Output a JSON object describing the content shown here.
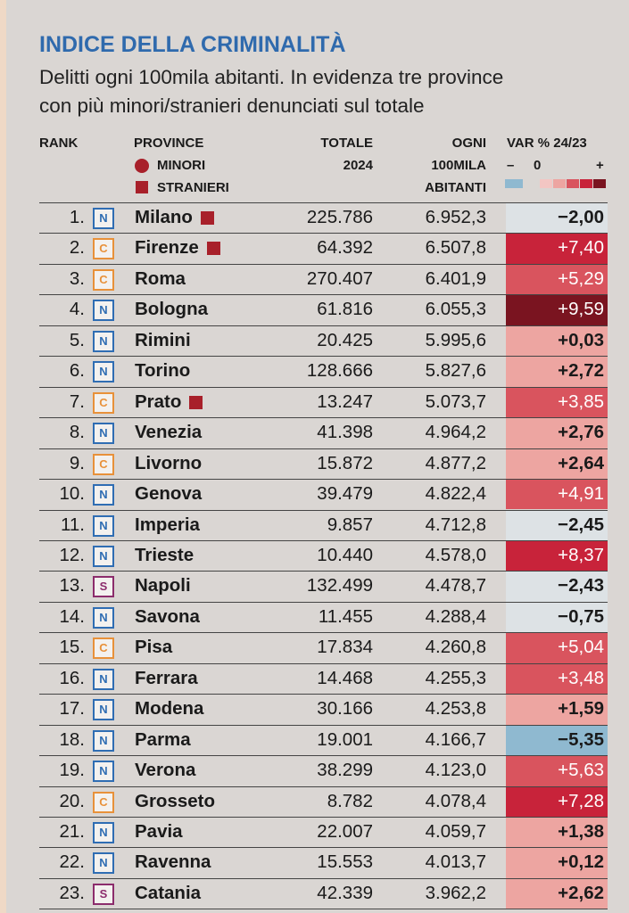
{
  "header": {
    "title": "INDICE DELLA CRIMINALITÀ",
    "subtitle": [
      "Delitti ogni 100mila abitanti. In evidenza tre province",
      "con più minori/stranieri denunciati sul totale"
    ]
  },
  "columns": {
    "rank": "RANK",
    "province": "PROVINCE",
    "minori": "MINORI",
    "stranieri": "STRANIERI",
    "totale": [
      "TOTALE",
      "2024"
    ],
    "ogni": [
      "OGNI",
      "100MILA",
      "ABITANTI"
    ],
    "var": "VAR % 24/23",
    "minus": "–",
    "zero": "0",
    "plus": "+"
  },
  "area_colors": {
    "N": "#2f6db3",
    "C": "#e8913a",
    "S": "#8c2c6c"
  },
  "marker_color": "#a8202a",
  "scale_colors": {
    "blue": "#8fb9d0",
    "gray": "#dde2e5",
    "pale": "#f3c6c3",
    "light": "#eda5a1",
    "medium": "#d9545e",
    "red": "#c8233a",
    "dark": "#7a1420"
  },
  "rows": [
    {
      "rank": "1.",
      "area": "N",
      "name": "Milano",
      "stranieri": true,
      "totale": "225.786",
      "ogni": "6.952,3",
      "var": "−2,00"
    },
    {
      "rank": "2.",
      "area": "C",
      "name": "Firenze",
      "stranieri": true,
      "totale": "64.392",
      "ogni": "6.507,8",
      "var": "+7,40"
    },
    {
      "rank": "3.",
      "area": "C",
      "name": "Roma",
      "totale": "270.407",
      "ogni": "6.401,9",
      "var": "+5,29"
    },
    {
      "rank": "4.",
      "area": "N",
      "name": "Bologna",
      "totale": "61.816",
      "ogni": "6.055,3",
      "var": "+9,59"
    },
    {
      "rank": "5.",
      "area": "N",
      "name": "Rimini",
      "totale": "20.425",
      "ogni": "5.995,6",
      "var": "+0,03"
    },
    {
      "rank": "6.",
      "area": "N",
      "name": "Torino",
      "totale": "128.666",
      "ogni": "5.827,6",
      "var": "+2,72"
    },
    {
      "rank": "7.",
      "area": "C",
      "name": "Prato",
      "stranieri": true,
      "totale": "13.247",
      "ogni": "5.073,7",
      "var": "+3,85"
    },
    {
      "rank": "8.",
      "area": "N",
      "name": "Venezia",
      "totale": "41.398",
      "ogni": "4.964,2",
      "var": "+2,76"
    },
    {
      "rank": "9.",
      "area": "C",
      "name": "Livorno",
      "totale": "15.872",
      "ogni": "4.877,2",
      "var": "+2,64"
    },
    {
      "rank": "10.",
      "area": "N",
      "name": "Genova",
      "totale": "39.479",
      "ogni": "4.822,4",
      "var": "+4,91"
    },
    {
      "rank": "11.",
      "area": "N",
      "name": "Imperia",
      "totale": "9.857",
      "ogni": "4.712,8",
      "var": "−2,45"
    },
    {
      "rank": "12.",
      "area": "N",
      "name": "Trieste",
      "totale": "10.440",
      "ogni": "4.578,0",
      "var": "+8,37"
    },
    {
      "rank": "13.",
      "area": "S",
      "name": "Napoli",
      "totale": "132.499",
      "ogni": "4.478,7",
      "var": "−2,43"
    },
    {
      "rank": "14.",
      "area": "N",
      "name": "Savona",
      "totale": "11.455",
      "ogni": "4.288,4",
      "var": "−0,75"
    },
    {
      "rank": "15.",
      "area": "C",
      "name": "Pisa",
      "totale": "17.834",
      "ogni": "4.260,8",
      "var": "+5,04"
    },
    {
      "rank": "16.",
      "area": "N",
      "name": "Ferrara",
      "totale": "14.468",
      "ogni": "4.255,3",
      "var": "+3,48"
    },
    {
      "rank": "17.",
      "area": "N",
      "name": "Modena",
      "totale": "30.166",
      "ogni": "4.253,8",
      "var": "+1,59"
    },
    {
      "rank": "18.",
      "area": "N",
      "name": "Parma",
      "totale": "19.001",
      "ogni": "4.166,7",
      "var": "−5,35"
    },
    {
      "rank": "19.",
      "area": "N",
      "name": "Verona",
      "totale": "38.299",
      "ogni": "4.123,0",
      "var": "+5,63"
    },
    {
      "rank": "20.",
      "area": "C",
      "name": "Grosseto",
      "totale": "8.782",
      "ogni": "4.078,4",
      "var": "+7,28"
    },
    {
      "rank": "21.",
      "area": "N",
      "name": "Pavia",
      "totale": "22.007",
      "ogni": "4.059,7",
      "var": "+1,38"
    },
    {
      "rank": "22.",
      "area": "N",
      "name": "Ravenna",
      "totale": "15.553",
      "ogni": "4.013,7",
      "var": "+0,12"
    },
    {
      "rank": "23.",
      "area": "S",
      "name": "Catania",
      "totale": "42.339",
      "ogni": "3.962,2",
      "var": "+2,62"
    }
  ]
}
